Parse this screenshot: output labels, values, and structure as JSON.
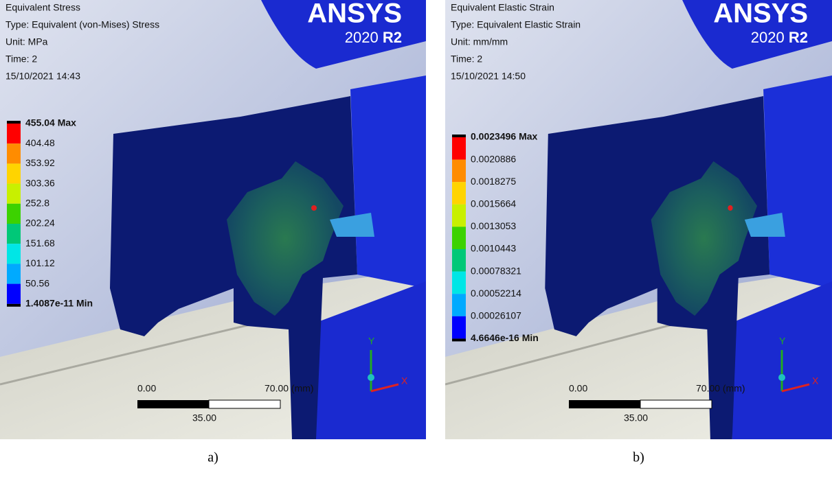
{
  "panels": [
    {
      "header": [
        "Equivalent Stress",
        "Type: Equivalent (von-Mises) Stress",
        "Unit: MPa",
        "Time: 2",
        "15/10/2021 14:43"
      ],
      "brand": {
        "name": "ANSYS",
        "version": "2020",
        "release": "R2"
      },
      "legend": [
        "455.04 Max",
        "404.48",
        "353.92",
        "303.36",
        "252.8",
        "202.24",
        "151.68",
        "101.12",
        "50.56",
        "1.4087e-11 Min"
      ],
      "scale": {
        "left": "0.00",
        "right": "70.00 (mm)",
        "middle": "35.00"
      },
      "axes": {
        "x": "X",
        "y": "Y"
      },
      "caption": "a)"
    },
    {
      "header": [
        "Equivalent Elastic Strain",
        "Type: Equivalent Elastic Strain",
        "Unit: mm/mm",
        "Time: 2",
        "15/10/2021 14:50"
      ],
      "brand": {
        "name": "ANSYS",
        "version": "2020",
        "release": "R2"
      },
      "legend": [
        "0.0023496 Max",
        "0.0020886",
        "0.0018275",
        "0.0015664",
        "0.0013053",
        "0.0010443",
        "0.00078321",
        "0.00052214",
        "0.00026107",
        "4.6646e-16 Min"
      ],
      "scale": {
        "left": "0.00",
        "right": "70.00 (mm)",
        "middle": "35.00"
      },
      "axes": {
        "x": "X",
        "y": "Y"
      },
      "caption": "b)"
    }
  ]
}
